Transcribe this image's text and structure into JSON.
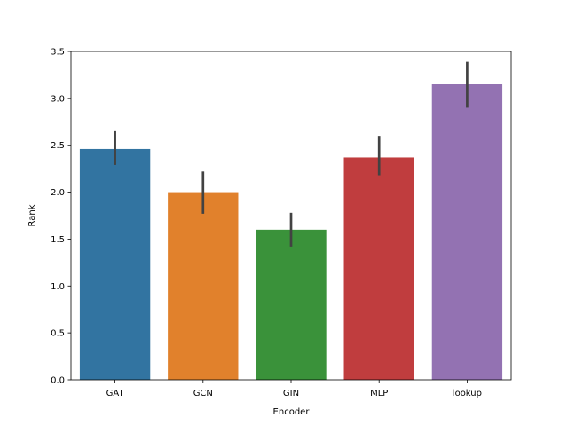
{
  "chart_data": {
    "type": "bar",
    "xlabel": "Encoder",
    "ylabel": "Rank",
    "categories": [
      "GAT",
      "GCN",
      "GIN",
      "MLP",
      "lookup"
    ],
    "values": [
      2.46,
      2.0,
      1.6,
      2.37,
      3.15
    ],
    "error_low": [
      2.29,
      1.77,
      1.42,
      2.18,
      2.9
    ],
    "error_high": [
      2.65,
      2.22,
      1.78,
      2.6,
      3.39
    ],
    "colors": [
      "#3274a1",
      "#e1812c",
      "#3a923a",
      "#c03d3e",
      "#9372b2"
    ],
    "ylim": [
      0,
      3.5
    ],
    "yticks": [
      0.0,
      0.5,
      1.0,
      1.5,
      2.0,
      2.5,
      3.0,
      3.5
    ],
    "ytick_labels": [
      "0.0",
      "0.5",
      "1.0",
      "1.5",
      "2.0",
      "2.5",
      "3.0",
      "3.5"
    ],
    "grid": false
  }
}
